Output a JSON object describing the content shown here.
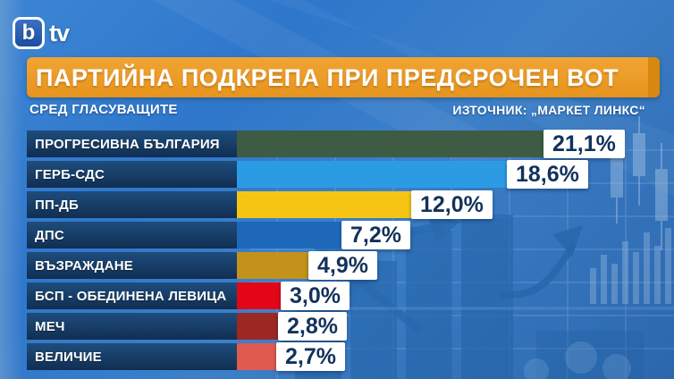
{
  "logo": {
    "b": "b",
    "suffix": "tv"
  },
  "header": {
    "title": "ПАРТИЙНА ПОДКРЕПА ПРИ ПРЕДСРОЧЕН ВОТ",
    "subtitle": "СРЕД ГЛАСУВАЩИТЕ",
    "source": "ИЗТОЧНИК: „МАРКЕТ ЛИНКС“"
  },
  "chart_data": {
    "type": "bar",
    "orientation": "horizontal",
    "title": "ПАРТИЙНА ПОДКРЕПА ПРИ ПРЕДСРОЧЕН ВОТ",
    "subtitle": "СРЕД ГЛАСУВАЩИТЕ",
    "source": "ИЗТОЧНИК: „МАРКЕТ ЛИНКС“",
    "categories": [
      "ПРОГРЕСИВНА БЪЛГАРИЯ",
      "ГЕРБ-СДС",
      "ПП-ДБ",
      "ДПС",
      "ВЪЗРАЖДАНЕ",
      "БСП - ОБЕДИНЕНА ЛЕВИЦА",
      "МЕЧ",
      "ВЕЛИЧИЕ"
    ],
    "values": [
      21.1,
      18.6,
      12.0,
      7.2,
      4.9,
      3.0,
      2.8,
      2.7
    ],
    "value_labels": [
      "21,1%",
      "18,6%",
      "12,0%",
      "7,2%",
      "4,9%",
      "3,0%",
      "2,8%",
      "2,7%"
    ],
    "bar_colors": [
      "#3E5C43",
      "#2B9CE4",
      "#F6C513",
      "#1E68BA",
      "#C3921A",
      "#E30617",
      "#9C2823",
      "#E05A50"
    ],
    "xlim": [
      0,
      22
    ],
    "grid": false,
    "legend": "none",
    "label_panel_color": "#153961",
    "value_text_color": "#12325A",
    "value_box_color": "#FFFFFF"
  },
  "colors": {
    "banner_orange": "#E6941D",
    "banner_edge": "#D8870F",
    "background_blue": "#3379C9",
    "label_navy": "#153961",
    "text_white": "#FFFFFF"
  }
}
